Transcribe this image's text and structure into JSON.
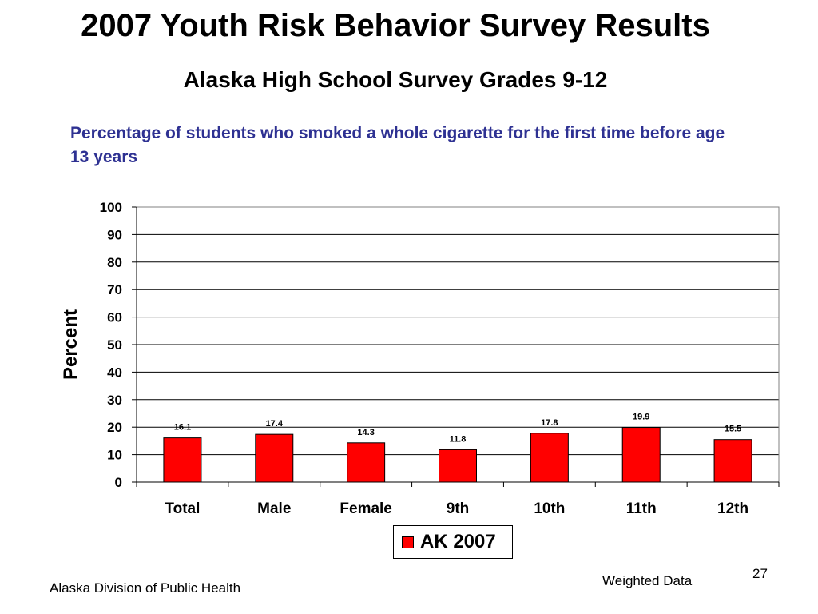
{
  "slide": {
    "title": "2007 Youth Risk Behavior Survey Results",
    "subtitle": "Alaska High School Survey Grades 9-12",
    "question": "Percentage of students who smoked a whole cigarette for the first time before age 13 years",
    "footer_left": "Alaska Division of Public Health",
    "footer_right": "Weighted Data",
    "page_number": "27"
  },
  "chart_data": {
    "type": "bar",
    "categories": [
      "Total",
      "Male",
      "Female",
      "9th",
      "10th",
      "11th",
      "12th"
    ],
    "series": [
      {
        "name": "AK 2007",
        "values": [
          16.1,
          17.4,
          14.3,
          11.8,
          17.8,
          19.9,
          15.5
        ]
      }
    ],
    "data_labels": [
      "16.1",
      "17.4",
      "14.3",
      "11.8",
      "17.8",
      "19.9",
      "15.5"
    ],
    "ylabel": "Percent",
    "xlabel": "",
    "ylim": [
      0,
      100
    ],
    "yticks": [
      0,
      10,
      20,
      30,
      40,
      50,
      60,
      70,
      80,
      90,
      100
    ],
    "grid": true,
    "legend_position": "bottom",
    "colors": {
      "bar": "#FF0000",
      "title_text": "#000000",
      "question_text": "#2E3192"
    }
  }
}
